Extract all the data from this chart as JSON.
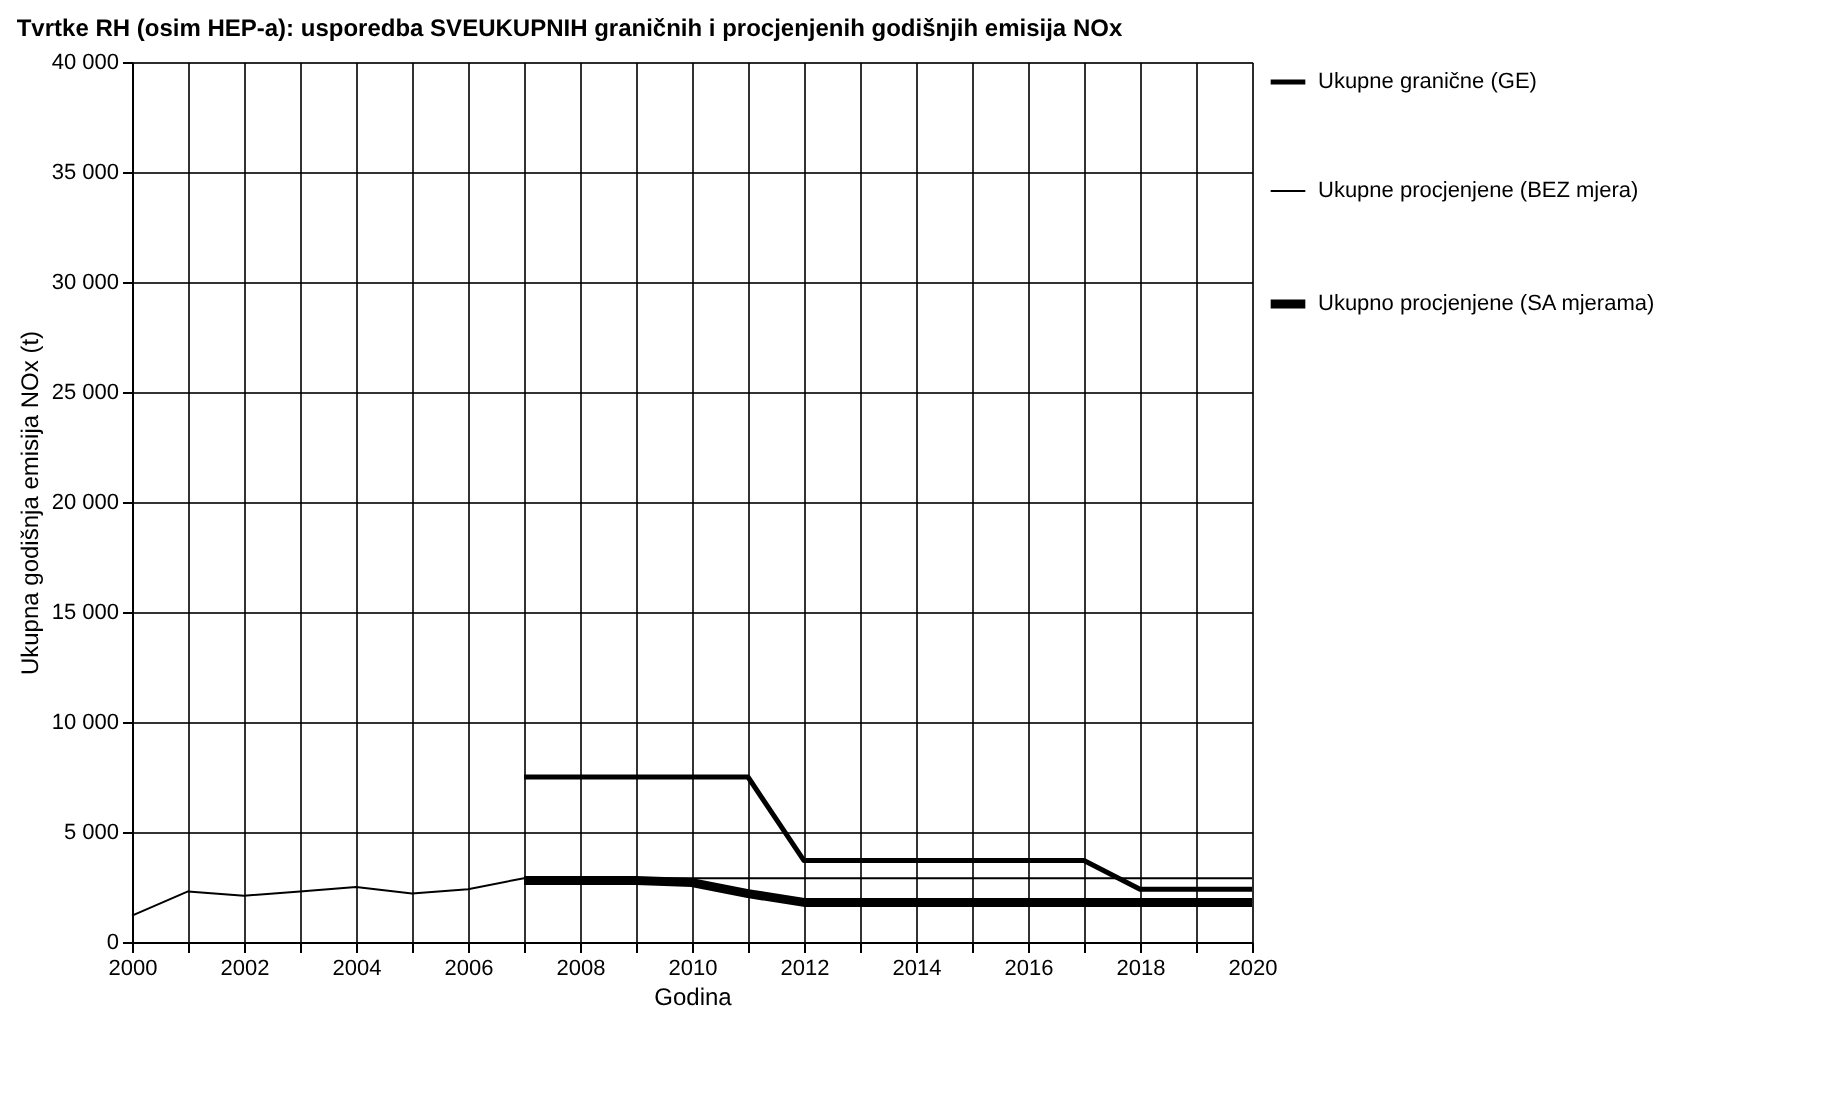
{
  "chart_data": {
    "type": "line",
    "title": "Tvrtke RH (osim HEP-a): usporedba SVEUKUPNIH graničnih i procjenjenih godišnjih emisija NOx",
    "xlabel": "Godina",
    "ylabel": "Ukupna godišnja emisija NOx (t)",
    "x": [
      2000,
      2001,
      2002,
      2003,
      2004,
      2005,
      2006,
      2007,
      2008,
      2009,
      2010,
      2011,
      2012,
      2013,
      2014,
      2015,
      2016,
      2017,
      2018,
      2019,
      2020
    ],
    "series": [
      {
        "name": "Ukupne granične (GE)",
        "color": "#000000",
        "values": [
          null,
          null,
          null,
          null,
          null,
          null,
          null,
          7500,
          7500,
          7500,
          7500,
          7500,
          3700,
          3700,
          3700,
          3700,
          3700,
          3700,
          2400,
          2400,
          2400
        ]
      },
      {
        "name": "Ukupne procjenjene (BEZ mjera)",
        "color": "#000000",
        "values": [
          1200,
          2300,
          2100,
          2300,
          2500,
          2200,
          2400,
          2900,
          2900,
          2900,
          2900,
          2900,
          2900,
          2900,
          2900,
          2900,
          2900,
          2900,
          2900,
          2900,
          2900
        ]
      },
      {
        "name": "Ukupno procjenjene (SA mjerama)",
        "color": "#000000",
        "values": [
          null,
          null,
          null,
          null,
          null,
          null,
          null,
          2800,
          2800,
          2800,
          2700,
          2200,
          1800,
          1800,
          1800,
          1800,
          1800,
          1800,
          1800,
          1800,
          1800
        ]
      }
    ],
    "xlim": [
      2000,
      2020
    ],
    "xticks": [
      2000,
      {
        "value": 2001,
        "label": null
      },
      2002,
      {
        "value": 2003,
        "label": null
      },
      2004,
      {
        "value": 2005,
        "label": null
      },
      2006,
      {
        "value": 2007,
        "label": null
      },
      2008,
      {
        "value": 2009,
        "label": null
      },
      2010,
      {
        "value": 2011,
        "label": null
      },
      2012,
      {
        "value": 2013,
        "label": null
      },
      2014,
      {
        "value": 2015,
        "label": null
      },
      2016,
      {
        "value": 2017,
        "label": null
      },
      2018,
      {
        "value": 2019,
        "label": null
      },
      2020
    ],
    "ylim": [
      0,
      40000
    ],
    "yticks": [
      {
        "value": 0,
        "label": "0"
      },
      {
        "value": 5000,
        "label": "5 000"
      },
      {
        "value": 10000,
        "label": "10 000"
      },
      {
        "value": 15000,
        "label": "15 000"
      },
      {
        "value": 20000,
        "label": "20 000"
      },
      {
        "value": 25000,
        "label": "25 000"
      },
      {
        "value": 30000,
        "label": "30 000"
      },
      {
        "value": 35000,
        "label": "35 000"
      },
      {
        "value": 40000,
        "label": "40 000"
      }
    ],
    "grid": true,
    "legend": "right",
    "marker": "none",
    "line_style": "solid"
  }
}
